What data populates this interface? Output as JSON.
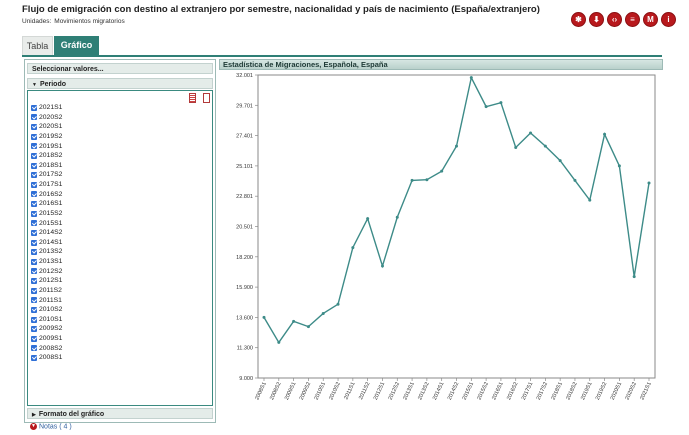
{
  "header": {
    "title": "Flujo de emigración con destino al extranjero por semestre, nacionalidad y país de nacimiento (España/extranjero)",
    "units_label": "Unidades:",
    "units_value": "Movimientos migratorios"
  },
  "toolbar": {
    "icons": [
      "settings-icon",
      "download-icon",
      "embed-code-icon",
      "database-icon",
      "mobile-icon",
      "info-icon"
    ],
    "accent": "#b8191d"
  },
  "tabs": [
    {
      "label": "Tabla",
      "active": false
    },
    {
      "label": "Gráfico",
      "active": true
    }
  ],
  "sidebar": {
    "select_values_label": "Seleccionar valores...",
    "periodo_label": "Periodo",
    "periods": [
      "2021S1",
      "2020S2",
      "2020S1",
      "2019S2",
      "2019S1",
      "2018S2",
      "2018S1",
      "2017S2",
      "2017S1",
      "2016S2",
      "2016S1",
      "2015S2",
      "2015S1",
      "2014S2",
      "2014S1",
      "2013S2",
      "2013S1",
      "2012S2",
      "2012S1",
      "2011S2",
      "2011S1",
      "2010S2",
      "2010S1",
      "2009S2",
      "2009S1",
      "2008S2",
      "2008S1"
    ],
    "formato_label": "Formato del gráfico"
  },
  "notas_label": "Notas ( 4 )",
  "chart_title": "Estadística de Migraciones, Española, España",
  "chart_data": {
    "type": "line",
    "x": [
      "2008S1",
      "2008S2",
      "2009S1",
      "2009S2",
      "2010S1",
      "2010S2",
      "2011S1",
      "2011S2",
      "2012S1",
      "2012S2",
      "2013S1",
      "2013S2",
      "2014S1",
      "2014S2",
      "2015S1",
      "2015S2",
      "2016S1",
      "2016S2",
      "2017S1",
      "2017S2",
      "2018S1",
      "2018S2",
      "2019S1",
      "2019S2",
      "2020S1",
      "2020S2",
      "2021S1"
    ],
    "series": [
      {
        "values": [
          13600,
          11700,
          13300,
          12900,
          13900,
          14600,
          18900,
          21100,
          17500,
          21200,
          24000,
          24050,
          24700,
          26600,
          31800,
          29600,
          29900,
          26500,
          27600,
          26600,
          25500,
          24000,
          22500,
          27500,
          25100,
          16700,
          23800
        ],
        "color": "#3d8b88"
      }
    ],
    "yticks": [
      "9.000",
      "11.300",
      "13.600",
      "15.900",
      "18.200",
      "20.501",
      "22.801",
      "25.101",
      "27.401",
      "29.701",
      "32.001"
    ],
    "ylim": [
      9000,
      32001
    ],
    "grid": false,
    "legend": "none"
  }
}
